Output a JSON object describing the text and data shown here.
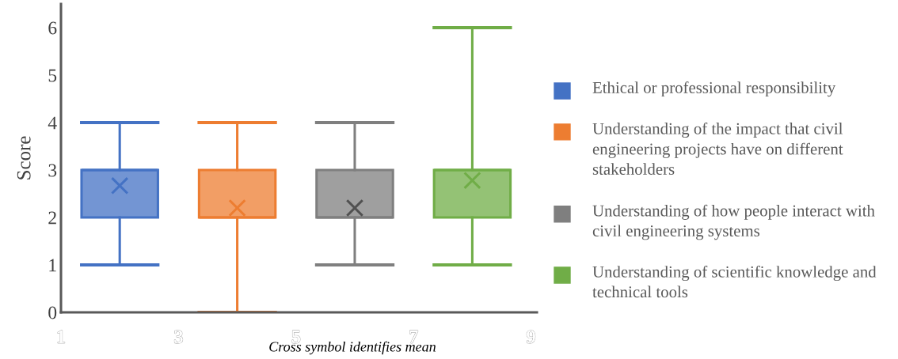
{
  "chart_data": {
    "type": "box",
    "ylabel": "Score",
    "xlim": [
      1,
      9.1
    ],
    "xticks": [
      1,
      3,
      5,
      7,
      9
    ],
    "ylim": [
      0,
      6.5
    ],
    "yticks": [
      0,
      1,
      2,
      3,
      4,
      5,
      6
    ],
    "grid": false,
    "legend": "right",
    "marker": "cross",
    "annotations": [
      "Cross symbol identifies mean"
    ],
    "series": [
      {
        "name": "Ethical or professional responsibility",
        "color": "#4472c4",
        "x": [
          2
        ],
        "boxes": [
          {
            "low": 1,
            "q1": 2,
            "median": 3,
            "q3": 3,
            "high": 4,
            "mean": 2.67
          }
        ]
      },
      {
        "name": "Understanding of the impact that civil engineering projects have on different stakeholders",
        "color": "#ed7d31",
        "x": [
          4
        ],
        "boxes": [
          {
            "low": 0,
            "q1": 2,
            "median": 2,
            "q3": 3,
            "high": 4,
            "mean": 2.2
          }
        ]
      },
      {
        "name": "Understanding of how people interact with civil engineering systems",
        "color": "#7f7f7f",
        "x": [
          6
        ],
        "boxes": [
          {
            "low": 1,
            "q1": 2,
            "median": 2,
            "q3": 3,
            "high": 4,
            "mean": 2.2
          }
        ]
      },
      {
        "name": "Understanding of scientific knowledge and technical tools",
        "color": "#70ad47",
        "x": [
          8
        ],
        "boxes": [
          {
            "low": 1,
            "q1": 2,
            "median": 3,
            "q3": 3,
            "high": 6,
            "mean": 2.78
          }
        ]
      }
    ]
  }
}
